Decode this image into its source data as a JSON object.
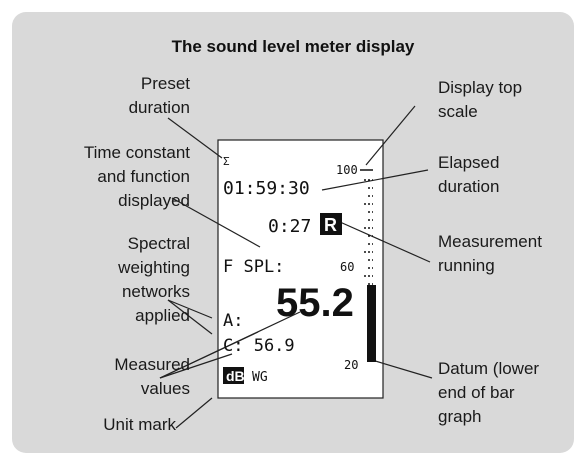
{
  "title": "The sound level meter display",
  "left_labels": [
    {
      "lines": [
        "Preset",
        "duration"
      ]
    },
    {
      "lines": [
        "Time constant",
        "and function",
        "displayed"
      ]
    },
    {
      "lines": [
        "Spectral",
        "weighting",
        "networks",
        "applied"
      ]
    },
    {
      "lines": [
        "Measured",
        "values"
      ]
    },
    {
      "lines": [
        "Unit mark"
      ]
    }
  ],
  "right_labels": [
    {
      "lines": [
        "Display top",
        "scale"
      ]
    },
    {
      "lines": [
        "Elapsed",
        "duration"
      ]
    },
    {
      "lines": [
        "Measurement",
        "running"
      ]
    },
    {
      "lines": [
        "Datum (lower",
        "end of bar",
        "graph"
      ]
    }
  ],
  "display": {
    "sigma": "Σ",
    "scale_top": "100",
    "elapsed": "01:59:30",
    "running_time": "0:27",
    "running_icon": "R",
    "function": "F SPL:",
    "scale_mid": "60",
    "a_label": "A:",
    "a_value": "55.2",
    "c_row": "C: 56.9",
    "unit": "dB",
    "mode": "WG",
    "scale_bottom": "20"
  }
}
